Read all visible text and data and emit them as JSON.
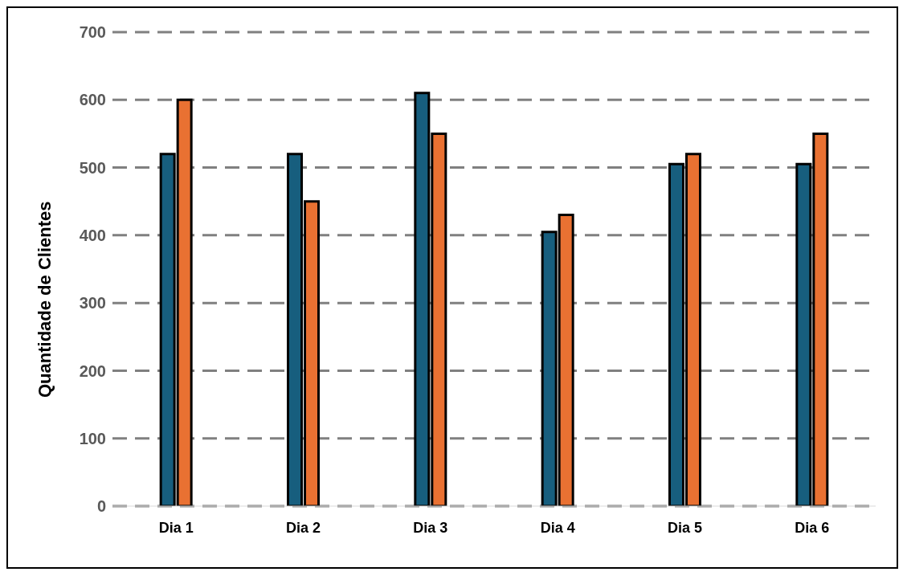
{
  "chart_data": {
    "type": "bar",
    "ylabel": "Quantidade de Clientes",
    "categories": [
      "Dia 1",
      "Dia 2",
      "Dia 3",
      "Dia 4",
      "Dia 5",
      "Dia 6"
    ],
    "series": [
      {
        "color": "#175e7e",
        "values": [
          520,
          520,
          610,
          405,
          505,
          505
        ]
      },
      {
        "color": "#e97132",
        "values": [
          600,
          450,
          550,
          430,
          520,
          550
        ]
      }
    ],
    "ylim": [
      0,
      700
    ],
    "yticks": [
      0,
      100,
      200,
      300,
      400,
      500,
      600,
      700
    ],
    "grid": "y"
  }
}
